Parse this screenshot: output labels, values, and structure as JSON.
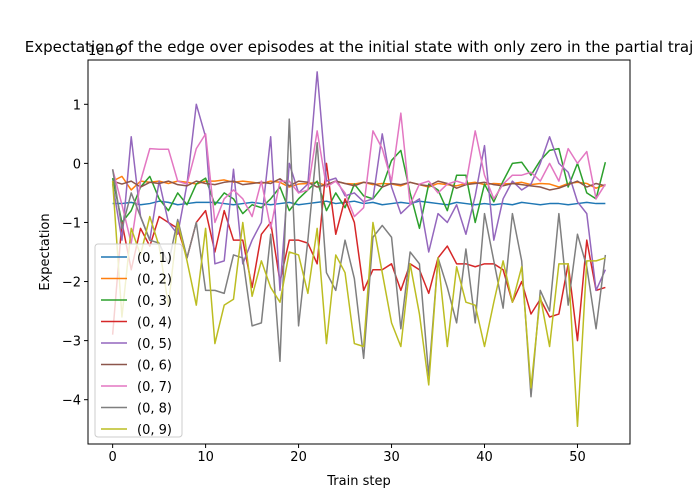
{
  "chart_data": {
    "type": "line",
    "title": "Expectation of the edge over episodes at the initial state with only zero in the partial traj",
    "xlabel": "Train step",
    "ylabel": "Expectation",
    "y_offset_label": "1e−6",
    "xlim": [
      -2.65,
      55.65
    ],
    "ylim": [
      -4.75,
      1.75
    ],
    "xticks": [
      0,
      10,
      20,
      30,
      40,
      50
    ],
    "yticks": [
      -4,
      -3,
      -2,
      -1,
      0,
      1
    ],
    "grid": false,
    "legend_position": "lower-left",
    "series": [
      {
        "name": "(0, 1)",
        "color": "#1f77b4",
        "values": [
          -0.68,
          -0.68,
          -0.66,
          -0.7,
          -0.68,
          -0.64,
          -0.66,
          -0.7,
          -0.68,
          -0.66,
          -0.66,
          -0.66,
          -0.68,
          -0.7,
          -0.68,
          -0.66,
          -0.68,
          -0.7,
          -0.68,
          -0.66,
          -0.7,
          -0.68,
          -0.66,
          -0.64,
          -0.68,
          -0.66,
          -0.64,
          -0.68,
          -0.66,
          -0.7,
          -0.68,
          -0.66,
          -0.68,
          -0.64,
          -0.66,
          -0.68,
          -0.7,
          -0.66,
          -0.68,
          -0.7,
          -0.68,
          -0.7,
          -0.68,
          -0.7,
          -0.66,
          -0.68,
          -0.7,
          -0.68,
          -0.68,
          -0.7,
          -0.68,
          -0.66,
          -0.68,
          -0.68
        ]
      },
      {
        "name": "(0, 2)",
        "color": "#ff7f0e",
        "values": [
          -0.3,
          -0.22,
          -0.45,
          -0.3,
          -0.32,
          -0.3,
          -0.34,
          -0.3,
          -0.32,
          -0.35,
          -0.3,
          -0.3,
          -0.28,
          -0.32,
          -0.3,
          -0.32,
          -0.34,
          -0.3,
          -0.32,
          -0.4,
          -0.35,
          -0.34,
          -0.32,
          -0.38,
          -0.3,
          -0.34,
          -0.35,
          -0.32,
          -0.36,
          -0.34,
          -0.35,
          -0.38,
          -0.32,
          -0.36,
          -0.4,
          -0.34,
          -0.36,
          -0.38,
          -0.34,
          -0.32,
          -0.36,
          -0.34,
          -0.35,
          -0.34,
          -0.32,
          -0.36,
          -0.34,
          -0.35,
          -0.4,
          -0.34,
          -0.32,
          -0.34,
          -0.42,
          -0.36
        ]
      },
      {
        "name": "(0, 3)",
        "color": "#2ca02c",
        "values": [
          -0.25,
          -1.0,
          -0.8,
          -0.4,
          -0.22,
          -0.6,
          -0.8,
          -0.5,
          -0.7,
          -0.35,
          -0.25,
          -0.7,
          -0.5,
          -0.6,
          -0.85,
          -0.7,
          -0.75,
          -0.6,
          -0.4,
          -0.8,
          -0.6,
          -0.45,
          -0.3,
          -0.8,
          -0.5,
          -0.75,
          -0.35,
          -0.55,
          -0.6,
          -0.4,
          0.05,
          0.22,
          -0.5,
          -1.1,
          -0.35,
          -0.45,
          -0.8,
          -0.2,
          -0.2,
          -1.0,
          -0.35,
          -0.65,
          -0.3,
          0.0,
          0.02,
          -0.2,
          0.05,
          0.22,
          0.25,
          -0.4,
          0.0,
          -0.5,
          -0.6,
          0.02
        ]
      },
      {
        "name": "(0, 4)",
        "color": "#d62728",
        "values": [
          -2.9,
          -1.0,
          -1.8,
          -1.1,
          -1.4,
          -0.9,
          -1.0,
          -1.1,
          -1.6,
          -1.0,
          -0.8,
          -1.5,
          -0.8,
          -1.3,
          -1.3,
          -2.1,
          -1.2,
          -1.0,
          -2.0,
          -1.3,
          -1.3,
          -1.35,
          -1.7,
          0.0,
          -1.2,
          -0.6,
          -1.0,
          -2.15,
          -1.8,
          -1.8,
          -1.7,
          -2.15,
          -1.7,
          -1.8,
          -2.2,
          -1.6,
          -1.4,
          -1.7,
          -1.7,
          -1.75,
          -1.7,
          -1.7,
          -1.8,
          -2.35,
          -2.0,
          -2.55,
          -2.3,
          -2.6,
          -2.55,
          -1.7,
          -3.0,
          -1.3,
          -2.15,
          -2.1
        ]
      },
      {
        "name": "(0, 5)",
        "color": "#9467bd",
        "values": [
          -0.35,
          -1.3,
          0.45,
          -0.9,
          -1.3,
          -0.3,
          -1.0,
          -1.2,
          -0.35,
          1.0,
          0.45,
          -1.7,
          -1.65,
          -0.1,
          -1.7,
          -1.3,
          -1.0,
          0.45,
          -2.15,
          0.0,
          -0.5,
          -0.35,
          1.55,
          -0.3,
          -0.25,
          -0.55,
          -0.5,
          -0.65,
          -0.6,
          0.5,
          -0.4,
          -0.85,
          -0.7,
          -0.6,
          -1.5,
          -0.85,
          -1.0,
          -0.7,
          -1.2,
          -0.55,
          0.3,
          -1.3,
          -0.6,
          -0.3,
          -0.45,
          -0.35,
          0.0,
          0.45,
          0.0,
          -0.15,
          -0.65,
          -0.85,
          -2.15,
          -1.8
        ]
      },
      {
        "name": "(0, 6)",
        "color": "#8c564b",
        "values": [
          -0.3,
          -0.35,
          -0.3,
          -0.4,
          -0.32,
          -0.34,
          -0.3,
          -0.36,
          -0.38,
          -0.3,
          -0.34,
          -0.36,
          -0.32,
          -0.3,
          -0.36,
          -0.34,
          -0.32,
          -0.34,
          -0.26,
          -0.38,
          -0.3,
          -0.32,
          -0.4,
          -0.36,
          -0.3,
          -0.34,
          -0.38,
          -0.32,
          -0.34,
          -0.4,
          -0.34,
          -0.36,
          -0.32,
          -0.36,
          -0.38,
          -0.3,
          -0.34,
          -0.42,
          -0.36,
          -0.34,
          -0.32,
          -0.36,
          -0.38,
          -0.34,
          -0.36,
          -0.38,
          -0.4,
          -0.45,
          -0.42,
          -0.36,
          -0.3,
          -0.4,
          -0.34,
          -0.38
        ]
      },
      {
        "name": "(0, 7)",
        "color": "#e377c2",
        "values": [
          -0.1,
          -0.7,
          -1.35,
          -0.3,
          0.25,
          0.24,
          0.24,
          -0.3,
          -0.35,
          0.25,
          0.5,
          -1.0,
          -0.6,
          -0.45,
          -0.6,
          -0.9,
          -0.3,
          -1.1,
          -0.3,
          -0.3,
          -0.5,
          -0.45,
          0.55,
          -0.4,
          -0.3,
          -0.5,
          -0.9,
          -0.75,
          0.55,
          0.25,
          -0.3,
          0.85,
          -0.7,
          -0.35,
          -0.3,
          -0.5,
          -0.35,
          -0.3,
          -0.35,
          0.55,
          -0.2,
          -0.6,
          -0.35,
          -0.2,
          -0.2,
          -0.15,
          -0.3,
          0.0,
          -0.3,
          0.25,
          0.0,
          0.2,
          -0.6,
          -0.35
        ]
      },
      {
        "name": "(0, 8)",
        "color": "#7f7f7f",
        "values": [
          -0.1,
          -1.1,
          -0.5,
          -0.9,
          -1.3,
          -1.35,
          -1.7,
          -0.95,
          -1.6,
          -1.0,
          -2.15,
          -2.15,
          -2.2,
          -1.55,
          -1.6,
          -2.75,
          -2.7,
          -1.2,
          -3.35,
          0.75,
          -2.75,
          -1.3,
          0.35,
          -1.85,
          -2.15,
          -1.3,
          -1.95,
          -3.3,
          -1.25,
          -1.05,
          -1.25,
          -2.8,
          -1.5,
          -1.7,
          -3.6,
          -1.6,
          -2.1,
          -2.7,
          -1.45,
          -2.7,
          -0.85,
          -1.65,
          -2.45,
          -0.85,
          -1.65,
          -3.95,
          -2.15,
          -2.5,
          -0.85,
          -2.4,
          -1.2,
          -1.75,
          -2.8,
          -1.55
        ]
      },
      {
        "name": "(0, 9)",
        "color": "#bcbd22",
        "values": [
          -0.3,
          -2.6,
          -1.1,
          -1.55,
          -0.9,
          -1.4,
          -2.4,
          -1.0,
          -1.65,
          -2.4,
          -1.1,
          -3.05,
          -2.4,
          -2.3,
          -1.0,
          -2.25,
          -1.65,
          -2.1,
          -2.35,
          -1.5,
          -1.55,
          -2.2,
          -1.1,
          -3.05,
          -1.55,
          -1.85,
          -3.05,
          -3.1,
          -1.0,
          -1.85,
          -2.7,
          -3.1,
          -1.7,
          -2.55,
          -3.75,
          -1.6,
          -3.1,
          -1.75,
          -2.35,
          -2.4,
          -3.1,
          -2.35,
          -1.65,
          -2.35,
          -1.75,
          -3.8,
          -2.25,
          -3.1,
          -1.7,
          -1.7,
          -4.45,
          -1.65,
          -1.65,
          -1.6
        ]
      }
    ]
  }
}
